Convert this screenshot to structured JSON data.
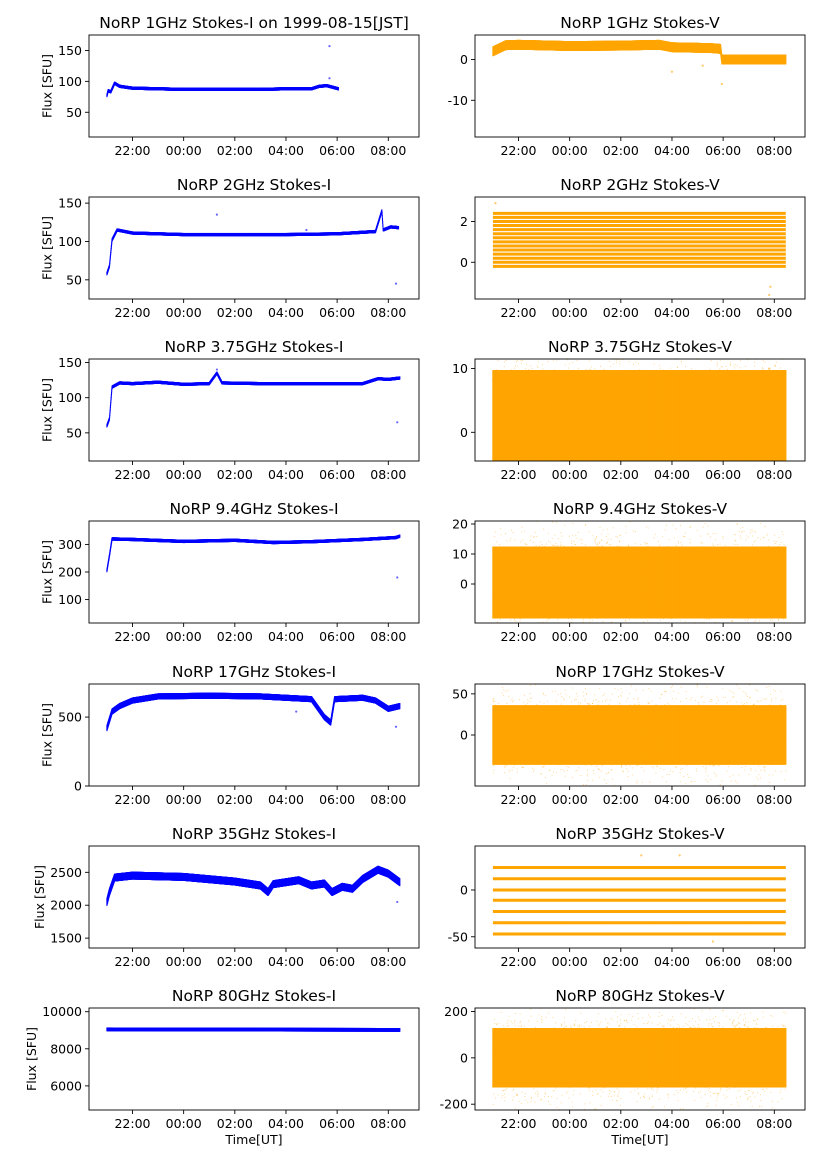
{
  "figure": {
    "background": "#ffffff"
  },
  "colors": {
    "stokes_i": "#0000ff",
    "stokes_v": "#ffa500",
    "axis": "#000000"
  },
  "chart_data": [
    {
      "type": "scatter",
      "title": "NoRP 1GHz Stokes-I on 1999-08-15[JST]",
      "ylabel": "Flux [SFU]",
      "xlabel": "",
      "ylim": [
        10,
        175
      ],
      "yticks": [
        50,
        100,
        150
      ],
      "xticks": [
        "22:00",
        "00:00",
        "02:00",
        "04:00",
        "06:00",
        "08:00"
      ],
      "xlim": [
        20.3,
        33.2
      ],
      "series": [
        {
          "color": "#0000ff",
          "x_start": 21.0,
          "x_end": 30.05,
          "shape": [
            [
              21.0,
              77
            ],
            [
              21.05,
              85
            ],
            [
              21.15,
              83
            ],
            [
              21.3,
              97
            ],
            [
              21.5,
              92
            ],
            [
              22,
              89
            ],
            [
              23,
              88
            ],
            [
              24,
              87
            ],
            [
              25,
              87
            ],
            [
              26,
              87
            ],
            [
              27,
              87
            ],
            [
              28,
              88
            ],
            [
              29,
              88
            ],
            [
              29.3,
              92
            ],
            [
              29.6,
              93
            ],
            [
              30.05,
              88
            ]
          ],
          "spread": 2.5,
          "spikes": [
            [
              29.7,
              157
            ],
            [
              29.7,
              105
            ]
          ]
        }
      ]
    },
    {
      "type": "scatter",
      "title": "NoRP 1GHz Stokes-V",
      "ylabel": "",
      "xlabel": "",
      "ylim": [
        -19,
        6
      ],
      "yticks": [
        -10,
        0
      ],
      "xticks": [
        "22:00",
        "00:00",
        "02:00",
        "04:00",
        "06:00",
        "08:00"
      ],
      "xlim": [
        20.3,
        33.2
      ],
      "series": [
        {
          "color": "#ffa500",
          "x_start": 21.0,
          "x_end": 32.45,
          "shape": [
            [
              21.0,
              2
            ],
            [
              21.5,
              3.5
            ],
            [
              22,
              3.6
            ],
            [
              24,
              3.3
            ],
            [
              26,
              3.4
            ],
            [
              27.5,
              3.6
            ],
            [
              28,
              3
            ],
            [
              29.5,
              2.8
            ],
            [
              29.9,
              2.6
            ],
            [
              29.95,
              0
            ],
            [
              32.45,
              0
            ]
          ],
          "spread": 1.2,
          "spikes": [
            [
              28,
              -3
            ],
            [
              29.2,
              -1.5
            ],
            [
              29.95,
              -6
            ]
          ]
        }
      ]
    },
    {
      "type": "scatter",
      "title": "NoRP 2GHz Stokes-I",
      "ylabel": "Flux [SFU]",
      "xlabel": "",
      "ylim": [
        25,
        158
      ],
      "yticks": [
        50,
        100,
        150
      ],
      "xticks": [
        "22:00",
        "00:00",
        "02:00",
        "04:00",
        "06:00",
        "08:00"
      ],
      "xlim": [
        20.3,
        33.2
      ],
      "series": [
        {
          "color": "#0000ff",
          "x_start": 21.0,
          "x_end": 32.4,
          "shape": [
            [
              21.0,
              58
            ],
            [
              21.1,
              68
            ],
            [
              21.2,
              102
            ],
            [
              21.4,
              115
            ],
            [
              22,
              111
            ],
            [
              24,
              109
            ],
            [
              26,
              109
            ],
            [
              28,
              109
            ],
            [
              30,
              110
            ],
            [
              31.5,
              113
            ],
            [
              31.75,
              140
            ],
            [
              31.8,
              115
            ],
            [
              32.1,
              119
            ],
            [
              32.4,
              118
            ]
          ],
          "spread": 2,
          "spikes": [
            [
              25.3,
              135
            ],
            [
              28.8,
              115
            ],
            [
              32.3,
              45
            ]
          ]
        }
      ]
    },
    {
      "type": "scatter",
      "title": "NoRP 2GHz Stokes-V",
      "ylabel": "",
      "xlabel": "",
      "ylim": [
        -1.8,
        3.2
      ],
      "yticks": [
        0,
        2
      ],
      "xticks": [
        "22:00",
        "00:00",
        "02:00",
        "04:00",
        "06:00",
        "08:00"
      ],
      "xlim": [
        20.3,
        33.2
      ],
      "series": [
        {
          "color": "#ffa500",
          "x_start": 21.0,
          "x_end": 32.45,
          "levels": [
            -0.2,
            0,
            0.2,
            0.4,
            0.6,
            0.8,
            1.0,
            1.2,
            1.4,
            1.6,
            1.8,
            2.0,
            2.2,
            2.4
          ],
          "spikes": [
            [
              21.1,
              2.9
            ],
            [
              31.8,
              -1.6
            ],
            [
              31.85,
              -1.2
            ]
          ]
        }
      ]
    },
    {
      "type": "scatter",
      "title": "NoRP 3.75GHz Stokes-I",
      "ylabel": "Flux [SFU]",
      "xlabel": "",
      "ylim": [
        10,
        155
      ],
      "yticks": [
        50,
        100,
        150
      ],
      "xticks": [
        "22:00",
        "00:00",
        "02:00",
        "04:00",
        "06:00",
        "08:00"
      ],
      "xlim": [
        20.3,
        33.2
      ],
      "series": [
        {
          "color": "#0000ff",
          "x_start": 21.0,
          "x_end": 32.45,
          "shape": [
            [
              21.0,
              60
            ],
            [
              21.1,
              70
            ],
            [
              21.2,
              115
            ],
            [
              21.5,
              121
            ],
            [
              22,
              120
            ],
            [
              23,
              122
            ],
            [
              24,
              119
            ],
            [
              25,
              120
            ],
            [
              25.3,
              135
            ],
            [
              25.5,
              121
            ],
            [
              27,
              120
            ],
            [
              29,
              120
            ],
            [
              31,
              120
            ],
            [
              31.6,
              127
            ],
            [
              32,
              126
            ],
            [
              32.45,
              128
            ]
          ],
          "spread": 2.2,
          "spikes": [
            [
              32.35,
              65
            ],
            [
              25.3,
              140
            ]
          ]
        }
      ]
    },
    {
      "type": "scatter",
      "title": "NoRP 3.75GHz Stokes-V",
      "ylabel": "",
      "xlabel": "",
      "ylim": [
        -4.5,
        11.5
      ],
      "yticks": [
        0,
        10
      ],
      "xticks": [
        "22:00",
        "00:00",
        "02:00",
        "04:00",
        "06:00",
        "08:00"
      ],
      "xlim": [
        20.3,
        33.2
      ],
      "series": [
        {
          "color": "#ffa500",
          "x_start": 21.0,
          "x_end": 32.45,
          "shape": [
            [
              21.0,
              1.5
            ],
            [
              32.45,
              1.5
            ]
          ],
          "spread": 5.5,
          "spikes": [
            [
              31.8,
              10
            ]
          ]
        }
      ]
    },
    {
      "type": "scatter",
      "title": "NoRP 9.4GHz Stokes-I",
      "ylabel": "Flux [SFU]",
      "xlabel": "",
      "ylim": [
        15,
        385
      ],
      "yticks": [
        100,
        200,
        300
      ],
      "xticks": [
        "22:00",
        "00:00",
        "02:00",
        "04:00",
        "06:00",
        "08:00"
      ],
      "xlim": [
        20.3,
        33.2
      ],
      "series": [
        {
          "color": "#0000ff",
          "x_start": 21.0,
          "x_end": 32.45,
          "shape": [
            [
              21.0,
              205
            ],
            [
              21.1,
              260
            ],
            [
              21.2,
              320
            ],
            [
              22,
              318
            ],
            [
              24,
              311
            ],
            [
              26,
              315
            ],
            [
              27.5,
              307
            ],
            [
              29,
              310
            ],
            [
              31,
              318
            ],
            [
              32.3,
              325
            ],
            [
              32.45,
              330
            ]
          ],
          "spread": 6,
          "spikes": [
            [
              32.35,
              180
            ]
          ]
        }
      ]
    },
    {
      "type": "scatter",
      "title": "NoRP 9.4GHz Stokes-V",
      "ylabel": "",
      "xlabel": "",
      "ylim": [
        -13,
        21
      ],
      "yticks": [
        0,
        10,
        20
      ],
      "xticks": [
        "22:00",
        "00:00",
        "02:00",
        "04:00",
        "06:00",
        "08:00"
      ],
      "xlim": [
        20.3,
        33.2
      ],
      "series": [
        {
          "color": "#ffa500",
          "x_start": 21.0,
          "x_end": 32.45,
          "shape": [
            [
              21.0,
              0.5
            ],
            [
              32.45,
              0.5
            ]
          ],
          "spread": 8,
          "spikes": []
        }
      ]
    },
    {
      "type": "scatter",
      "title": "NoRP 17GHz Stokes-I",
      "ylabel": "Flux [SFU]",
      "xlabel": "",
      "ylim": [
        0,
        740
      ],
      "yticks": [
        0,
        500
      ],
      "xticks": [
        "22:00",
        "00:00",
        "02:00",
        "04:00",
        "06:00",
        "08:00"
      ],
      "xlim": [
        20.3,
        33.2
      ],
      "series": [
        {
          "color": "#0000ff",
          "x_start": 21.0,
          "x_end": 32.45,
          "shape": [
            [
              21.0,
              420
            ],
            [
              21.2,
              540
            ],
            [
              21.5,
              580
            ],
            [
              22,
              620
            ],
            [
              23,
              650
            ],
            [
              25,
              655
            ],
            [
              27,
              650
            ],
            [
              28,
              640
            ],
            [
              29,
              630
            ],
            [
              29.5,
              500
            ],
            [
              29.75,
              460
            ],
            [
              29.9,
              630
            ],
            [
              31,
              640
            ],
            [
              31.5,
              620
            ],
            [
              32,
              560
            ],
            [
              32.45,
              580
            ]
          ],
          "spread": 22,
          "spikes": [
            [
              28.4,
              540
            ],
            [
              32.3,
              430
            ]
          ]
        }
      ]
    },
    {
      "type": "scatter",
      "title": "NoRP 17GHz Stokes-V",
      "ylabel": "",
      "xlabel": "",
      "ylim": [
        -62,
        62
      ],
      "yticks": [
        0,
        50
      ],
      "xticks": [
        "22:00",
        "00:00",
        "02:00",
        "04:00",
        "06:00",
        "08:00"
      ],
      "xlim": [
        20.3,
        33.2
      ],
      "series": [
        {
          "color": "#ffa500",
          "x_start": 21.0,
          "x_end": 32.45,
          "shape": [
            [
              21.0,
              0
            ],
            [
              32.45,
              0
            ]
          ],
          "spread": 24,
          "spikes": []
        }
      ]
    },
    {
      "type": "scatter",
      "title": "NoRP 35GHz Stokes-I",
      "ylabel": "Flux [SFU]",
      "xlabel": "",
      "ylim": [
        1350,
        2900
      ],
      "yticks": [
        1500,
        2000,
        2500
      ],
      "xticks": [
        "22:00",
        "00:00",
        "02:00",
        "04:00",
        "06:00",
        "08:00"
      ],
      "xlim": [
        20.3,
        33.2
      ],
      "series": [
        {
          "color": "#0000ff",
          "x_start": 21.0,
          "x_end": 32.45,
          "shape": [
            [
              21.0,
              2050
            ],
            [
              21.1,
              2200
            ],
            [
              21.3,
              2420
            ],
            [
              22,
              2450
            ],
            [
              24,
              2430
            ],
            [
              26,
              2360
            ],
            [
              27,
              2300
            ],
            [
              27.3,
              2200
            ],
            [
              27.5,
              2320
            ],
            [
              28.5,
              2380
            ],
            [
              29,
              2300
            ],
            [
              29.5,
              2330
            ],
            [
              29.8,
              2200
            ],
            [
              30.2,
              2280
            ],
            [
              30.6,
              2250
            ],
            [
              31,
              2400
            ],
            [
              31.6,
              2540
            ],
            [
              32,
              2480
            ],
            [
              32.45,
              2350
            ]
          ],
          "spread": 60,
          "spikes": [
            [
              32.35,
              2050
            ]
          ]
        }
      ]
    },
    {
      "type": "scatter",
      "title": "NoRP 35GHz Stokes-V",
      "ylabel": "",
      "xlabel": "",
      "ylim": [
        -62,
        47
      ],
      "yticks": [
        -50,
        0
      ],
      "xticks": [
        "22:00",
        "00:00",
        "02:00",
        "04:00",
        "06:00",
        "08:00"
      ],
      "xlim": [
        20.3,
        33.2
      ],
      "series": [
        {
          "color": "#ffa500",
          "x_start": 21.0,
          "x_end": 32.45,
          "levels": [
            24,
            12,
            0,
            -11,
            -23,
            -35,
            -47
          ],
          "spikes": [
            [
              26.8,
              37
            ],
            [
              28.3,
              37
            ],
            [
              29.6,
              -55
            ]
          ]
        }
      ]
    },
    {
      "type": "scatter",
      "title": "NoRP 80GHz Stokes-I",
      "ylabel": "Flux [SFU]",
      "xlabel": "Time[UT]",
      "ylim": [
        4700,
        10200
      ],
      "yticks": [
        6000,
        8000,
        10000
      ],
      "xticks": [
        "22:00",
        "00:00",
        "02:00",
        "04:00",
        "06:00",
        "08:00"
      ],
      "xlim": [
        20.3,
        33.2
      ],
      "series": [
        {
          "color": "#0000ff",
          "x_start": 21.0,
          "x_end": 32.45,
          "shape": [
            [
              21.0,
              9050
            ],
            [
              32.45,
              9020
            ]
          ],
          "spread": 100,
          "spikes": []
        }
      ]
    },
    {
      "type": "scatter",
      "title": "NoRP 80GHz Stokes-V",
      "ylabel": "",
      "xlabel": "Time[UT]",
      "ylim": [
        -225,
        215
      ],
      "yticks": [
        -200,
        0,
        200
      ],
      "xticks": [
        "22:00",
        "00:00",
        "02:00",
        "04:00",
        "06:00",
        "08:00"
      ],
      "xlim": [
        20.3,
        33.2
      ],
      "series": [
        {
          "color": "#ffa500",
          "x_start": 21.0,
          "x_end": 32.45,
          "shape": [
            [
              21.0,
              0
            ],
            [
              32.45,
              0
            ]
          ],
          "spread": 85,
          "spikes": []
        }
      ]
    }
  ]
}
